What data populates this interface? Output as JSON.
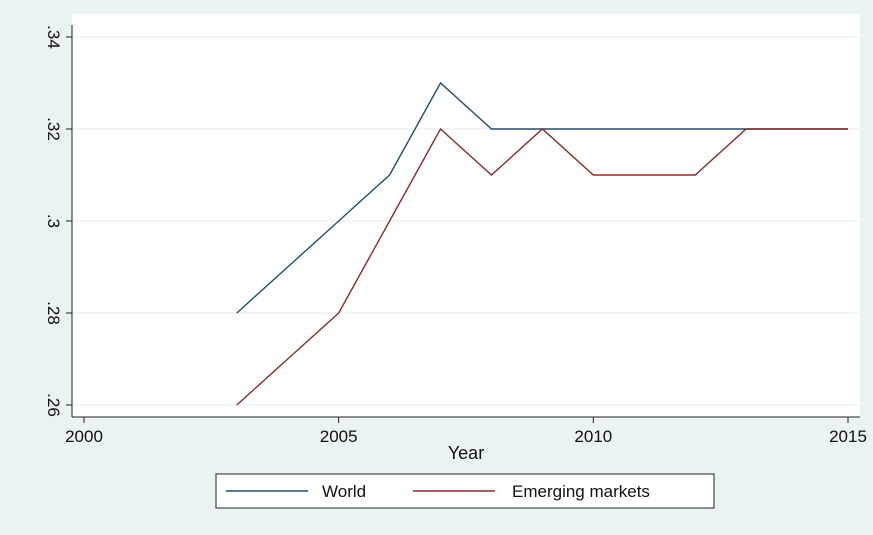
{
  "chart_data": {
    "type": "line",
    "title": "",
    "xlabel": "Year",
    "ylabel": "",
    "xlim": [
      2000,
      2015
    ],
    "ylim": [
      0.26,
      0.34
    ],
    "xticks": [
      2000,
      2005,
      2010,
      2015
    ],
    "xtick_labels": [
      "2000",
      "2005",
      "2010",
      "2015"
    ],
    "yticks": [
      0.26,
      0.28,
      0.3,
      0.32,
      0.34
    ],
    "ytick_labels": [
      ".26",
      ".28",
      ".3",
      ".32",
      ".34"
    ],
    "grid": true,
    "legend_position": "bottom",
    "series": [
      {
        "name": "World",
        "color": "#1f4e6e",
        "x": [
          2003,
          2004,
          2005,
          2006,
          2007,
          2008,
          2009,
          2010,
          2011,
          2012,
          2013,
          2014,
          2015
        ],
        "y": [
          0.28,
          0.29,
          0.3,
          0.31,
          0.33,
          0.32,
          0.32,
          0.32,
          0.32,
          0.32,
          0.32,
          0.32,
          0.32
        ]
      },
      {
        "name": "Emerging markets",
        "color": "#8b2c2c",
        "x": [
          2003,
          2004,
          2005,
          2006,
          2007,
          2008,
          2009,
          2010,
          2011,
          2012,
          2013,
          2014,
          2015
        ],
        "y": [
          0.26,
          0.27,
          0.28,
          0.3,
          0.32,
          0.31,
          0.32,
          0.31,
          0.31,
          0.31,
          0.32,
          0.32,
          0.32
        ]
      }
    ]
  }
}
